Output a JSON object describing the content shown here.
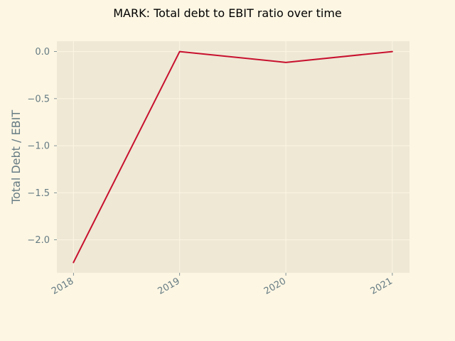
{
  "chart_data": {
    "type": "line",
    "title": "MARK: Total debt to EBIT ratio over time",
    "xlabel": "",
    "ylabel": "Total Debt / EBIT",
    "x": [
      "2018",
      "2019",
      "2020",
      "2021"
    ],
    "series": [
      {
        "values": [
          -2.24,
          0.0,
          -0.115,
          0.0
        ]
      }
    ],
    "xlim": [
      "2017-11-05",
      "2021-03-01"
    ],
    "ylim": [
      -2.35,
      0.11
    ],
    "yticks": [
      0.0,
      -0.5,
      -1.0,
      -1.5,
      -2.0
    ],
    "ytick_labels": [
      "0.0",
      "−0.5",
      "−1.0",
      "−1.5",
      "−2.0"
    ],
    "xtick_labels": [
      "2018",
      "2019",
      "2020",
      "2021"
    ],
    "grid": true,
    "colors": {
      "figure_bg": "#fdf6e3",
      "plot_bg": "#eee8d5",
      "line": "#c8102e",
      "grid": "#fdf6e3",
      "tick_text": "#657b83",
      "title_text": "#000000"
    }
  }
}
